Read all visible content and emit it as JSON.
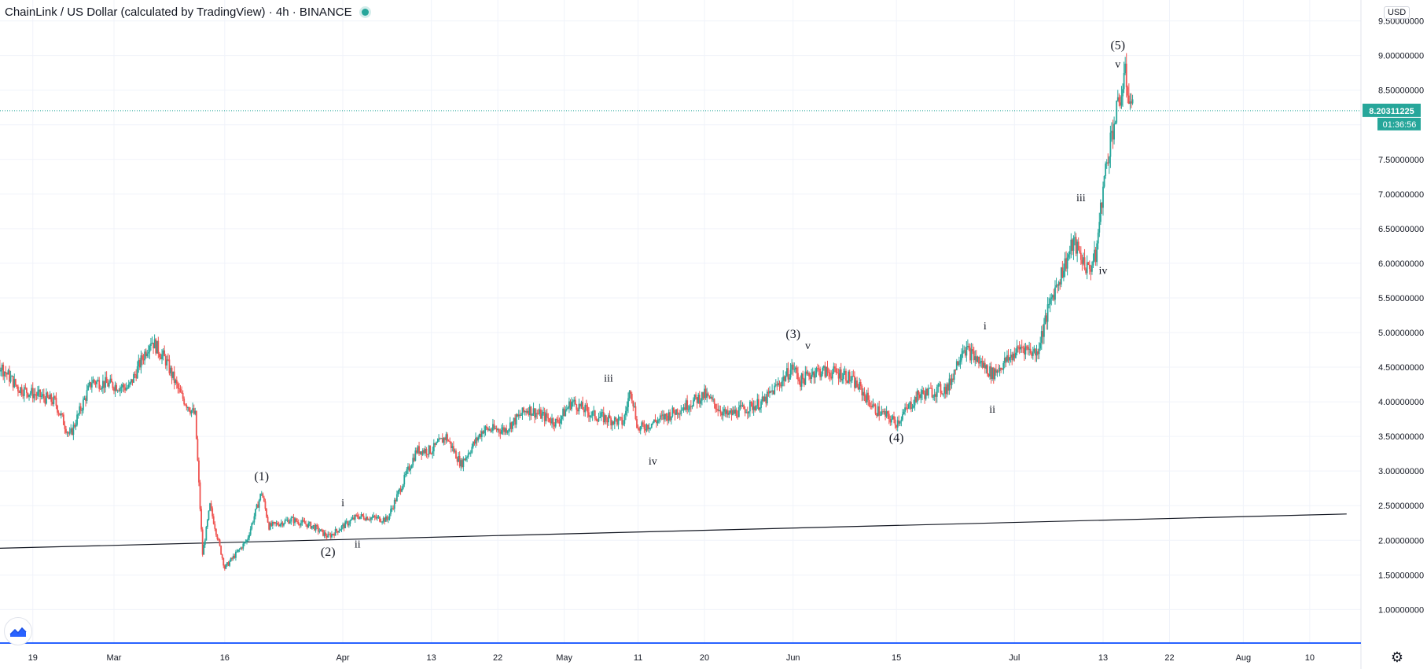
{
  "header": {
    "symbol": "ChainLink / US Dollar (calculated by TradingView)",
    "interval": "4h",
    "exchange": "BINANCE"
  },
  "price_axis": {
    "currency": "USD"
  },
  "colors": {
    "up": "#26a69a",
    "down": "#ef5350",
    "price_line": "#26a69a",
    "grid": "#f0f3fa",
    "trendline": "#131722",
    "bottom_border": "#2962ff"
  },
  "icons": {
    "logo": "tradingview-logo-icon",
    "settings": "gear-icon",
    "live": "live-dot-icon"
  },
  "chart_data": {
    "type": "candlestick",
    "y_ticks": [
      "1.00000000",
      "1.50000000",
      "2.00000000",
      "2.50000000",
      "3.00000000",
      "3.50000000",
      "4.00000000",
      "4.50000000",
      "5.00000000",
      "5.50000000",
      "6.00000000",
      "6.50000000",
      "7.00000000",
      "7.50000000",
      "8.",
      "8.50000000",
      "9.00000000",
      "9.50000000"
    ],
    "ylim": [
      0.55,
      9.7
    ],
    "x_ticks": [
      "19",
      "Mar",
      "16",
      "Apr",
      "13",
      "22",
      "May",
      "11",
      "20",
      "Jun",
      "15",
      "Jul",
      "13",
      "22",
      "Aug",
      "10"
    ],
    "last_price_label": "8.20311225",
    "countdown_label": "01:36:56",
    "last_price": 8.20311225,
    "trendline": {
      "start": {
        "date": "Feb 09",
        "price": 1.87
      },
      "end": {
        "date": "Aug 15",
        "price": 2.38
      }
    },
    "price_path": [
      [
        "Feb 10",
        4.0
      ],
      [
        "Feb 14",
        4.6
      ],
      [
        "Feb 17",
        4.2
      ],
      [
        "Feb 22",
        4.0
      ],
      [
        "Feb 24",
        3.5
      ],
      [
        "Feb 27",
        4.3
      ],
      [
        "Mar 03",
        4.2
      ],
      [
        "Mar 06",
        4.9
      ],
      [
        "Mar 08",
        4.6
      ],
      [
        "Mar 10",
        4.1
      ],
      [
        "Mar 12",
        3.8
      ],
      [
        "Mar 13",
        1.8
      ],
      [
        "Mar 14",
        2.5
      ],
      [
        "Mar 16",
        1.6
      ],
      [
        "Mar 19",
        2.0
      ],
      [
        "Mar 21",
        2.7
      ],
      [
        "Mar 22",
        2.2
      ],
      [
        "Mar 25",
        2.3
      ],
      [
        "Mar 28",
        2.2
      ],
      [
        "Mar 30",
        2.05
      ],
      [
        "Apr 03",
        2.35
      ],
      [
        "Apr 07",
        2.3
      ],
      [
        "Apr 09",
        2.8
      ],
      [
        "Apr 11",
        3.3
      ],
      [
        "Apr 13",
        3.3
      ],
      [
        "Apr 15",
        3.5
      ],
      [
        "Apr 17",
        3.1
      ],
      [
        "Apr 20",
        3.6
      ],
      [
        "Apr 23",
        3.6
      ],
      [
        "Apr 26",
        3.9
      ],
      [
        "Apr 30",
        3.7
      ],
      [
        "May 02",
        4.0
      ],
      [
        "May 05",
        3.8
      ],
      [
        "May 09",
        3.7
      ],
      [
        "May 10",
        4.2
      ],
      [
        "May 11",
        3.6
      ],
      [
        "May 15",
        3.8
      ],
      [
        "May 20",
        4.1
      ],
      [
        "May 23",
        3.8
      ],
      [
        "May 28",
        4.0
      ],
      [
        "Jun 01",
        4.5
      ],
      [
        "Jun 02",
        4.3
      ],
      [
        "Jun 04",
        4.45
      ],
      [
        "Jun 08",
        4.4
      ],
      [
        "Jun 10",
        4.2
      ],
      [
        "Jun 12",
        3.9
      ],
      [
        "Jun 15",
        3.7
      ],
      [
        "Jun 18",
        4.1
      ],
      [
        "Jun 22",
        4.2
      ],
      [
        "Jun 24",
        4.8
      ],
      [
        "Jun 26",
        4.6
      ],
      [
        "Jun 28",
        4.4
      ],
      [
        "Jul 02",
        4.8
      ],
      [
        "Jul 04",
        4.7
      ],
      [
        "Jul 06",
        5.5
      ],
      [
        "Jul 09",
        6.3
      ],
      [
        "Jul 11",
        5.9
      ],
      [
        "Jul 12",
        6.1
      ],
      [
        "Jul 13",
        7.1
      ],
      [
        "Jul 14",
        7.8
      ],
      [
        "Jul 16",
        8.7
      ],
      [
        "Jul 17",
        8.2
      ]
    ],
    "wave_labels": [
      {
        "text": "(1)",
        "date": "Mar 21",
        "price": 2.92
      },
      {
        "text": "(2)",
        "date": "Mar 30",
        "price": 1.83
      },
      {
        "text": "i",
        "date": "Apr 01",
        "price": 2.55
      },
      {
        "text": "ii",
        "date": "Apr 03",
        "price": 1.95
      },
      {
        "text": "iii",
        "date": "May 07",
        "price": 4.35
      },
      {
        "text": "iv",
        "date": "May 13",
        "price": 3.15
      },
      {
        "text": "(3)",
        "date": "Jun 01",
        "price": 4.98
      },
      {
        "text": "v",
        "date": "Jun 03",
        "price": 4.82
      },
      {
        "text": "(4)",
        "date": "Jun 15",
        "price": 3.48
      },
      {
        "text": "i",
        "date": "Jun 27",
        "price": 5.1
      },
      {
        "text": "ii",
        "date": "Jun 28",
        "price": 3.9
      },
      {
        "text": "iii",
        "date": "Jul 10",
        "price": 6.95
      },
      {
        "text": "iv",
        "date": "Jul 13",
        "price": 5.9
      },
      {
        "text": "(5)",
        "date": "Jul 15",
        "price": 9.15
      },
      {
        "text": "v",
        "date": "Jul 15",
        "price": 8.88
      }
    ]
  }
}
